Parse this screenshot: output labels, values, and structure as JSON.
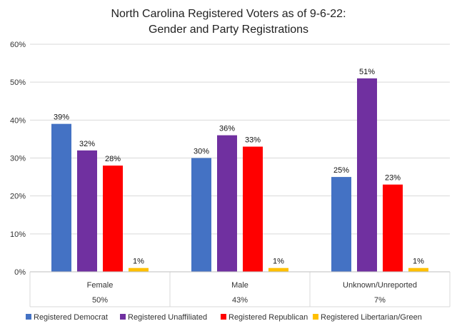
{
  "chart_data": {
    "type": "bar",
    "title": "North Carolina Registered Voters as of 9-6-22:",
    "subtitle": "Gender and Party Registrations",
    "categories": [
      "Female",
      "Male",
      "Unknown/Unreported"
    ],
    "category_shares": [
      "50%",
      "43%",
      "7%"
    ],
    "series": [
      {
        "name": "Registered Democrat",
        "color": "#4472C4",
        "values": [
          39,
          30,
          25
        ],
        "labels": [
          "39%",
          "30%",
          "25%"
        ]
      },
      {
        "name": "Registered Unaffiliated",
        "color": "#7030A0",
        "values": [
          32,
          36,
          51
        ],
        "labels": [
          "32%",
          "36%",
          "51%"
        ]
      },
      {
        "name": "Registered Republican",
        "color": "#FF0000",
        "values": [
          28,
          33,
          23
        ],
        "labels": [
          "28%",
          "33%",
          "23%"
        ]
      },
      {
        "name": "Registered Libertarian/Green",
        "color": "#FFC000",
        "values": [
          1,
          1,
          1
        ],
        "labels": [
          "1%",
          "1%",
          "1%"
        ]
      }
    ],
    "y_ticks": [
      "0%",
      "10%",
      "20%",
      "30%",
      "40%",
      "50%",
      "60%"
    ],
    "ylim": [
      0,
      60
    ],
    "grid": true,
    "legend": "bottom"
  }
}
